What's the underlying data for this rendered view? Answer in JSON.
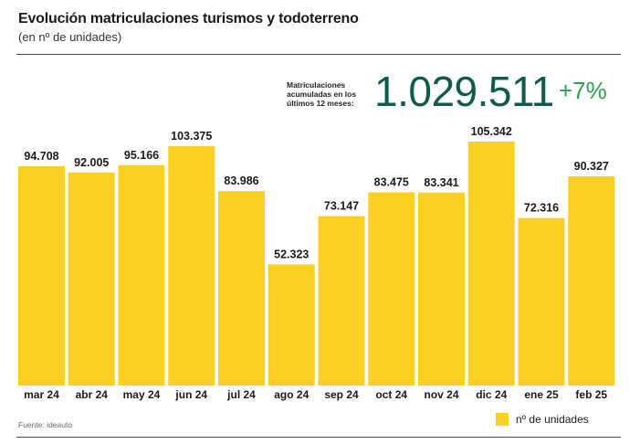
{
  "header": {
    "title": "Evolución matriculaciones turismos y todoterreno",
    "subtitle": "(en nº de unidades)"
  },
  "kpi": {
    "label": "Matriculaciones acumuladas en los últimos 12 meses:",
    "value": "1.029.511",
    "change": "+7%"
  },
  "footer": {
    "source": "Fuente: ideauto"
  },
  "colors": {
    "bar": "#fbd022",
    "kpi_value": "#0d5c4c",
    "kpi_change": "#2e9e4f"
  },
  "chart_data": {
    "type": "bar",
    "categories": [
      "mar 24",
      "abr 24",
      "may 24",
      "jun 24",
      "jul 24",
      "ago 24",
      "sep 24",
      "oct 24",
      "nov 24",
      "dic 24",
      "ene 25",
      "feb 25"
    ],
    "series": [
      {
        "name": "nº de unidades",
        "values": [
          94708,
          92005,
          95166,
          103375,
          83986,
          52323,
          73147,
          83475,
          83341,
          105342,
          72316,
          90327
        ],
        "labels": [
          "94.708",
          "92.005",
          "95.166",
          "103.375",
          "83.986",
          "52.323",
          "73.147",
          "83.475",
          "83.341",
          "105.342",
          "72.316",
          "90.327"
        ]
      }
    ],
    "ylim": [
      0,
      105342
    ],
    "grid": false,
    "legend": "bottom-right",
    "data_labels": "above-bars"
  }
}
